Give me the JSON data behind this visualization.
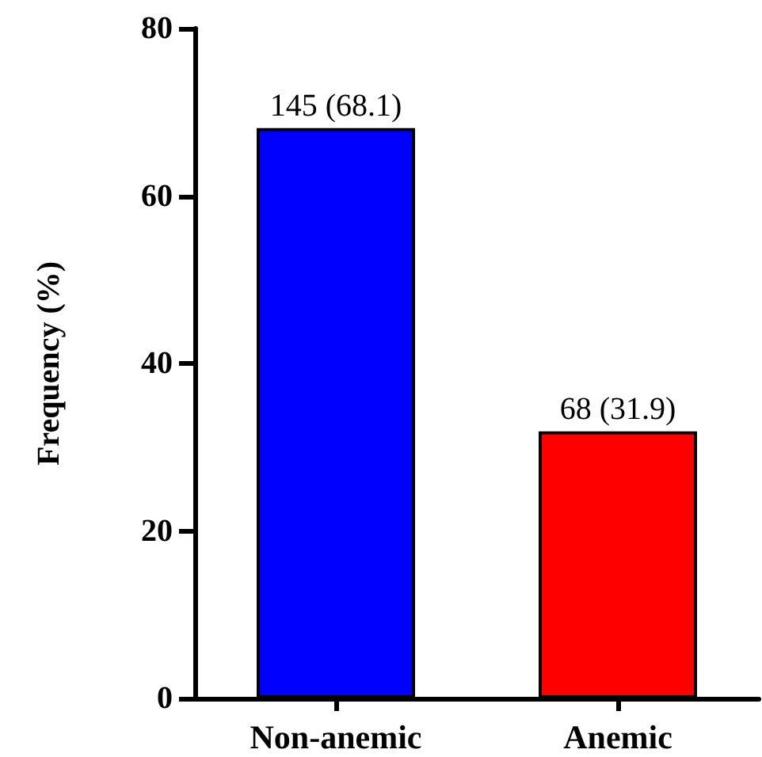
{
  "chart_data": {
    "type": "bar",
    "ylabel": "Frequency (%)",
    "categories": [
      "Non-anemic",
      "Anemic"
    ],
    "values": [
      68.1,
      31.9
    ],
    "colors": [
      "#0000ff",
      "#ff0000"
    ],
    "value_labels": [
      "145 (68.1)",
      "68 (31.9)"
    ],
    "ylim": [
      0,
      80
    ],
    "yticks": [
      0,
      20,
      40,
      60,
      80
    ],
    "grid": false
  }
}
